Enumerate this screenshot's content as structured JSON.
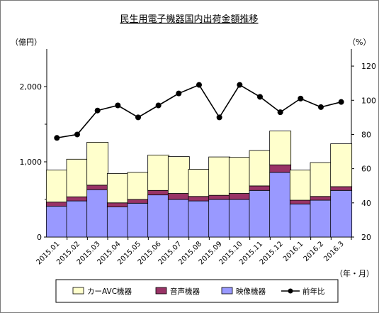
{
  "chart_data": {
    "type": "bar",
    "title": "民生用電子機器国内出荷金額推移",
    "y_left_unit": "（億円）",
    "y_right_unit": "（%）",
    "x_unit": "（年・月）",
    "y_left_range": [
      0,
      2500
    ],
    "y_left_ticks": [
      "0",
      "1,000",
      "2,000"
    ],
    "y_right_range": [
      20,
      130
    ],
    "y_right_ticks": [
      "20",
      "40",
      "60",
      "80",
      "100",
      "120"
    ],
    "grid": false,
    "legend_position": "bottom",
    "categories": [
      "2015.01",
      "2015.02",
      "2015.03",
      "2015.04",
      "2015.05",
      "2015.06",
      "2015.07",
      "2015.08",
      "2015.09",
      "2015.10",
      "2015.11",
      "2015.12",
      "2016.1",
      "2016.2",
      "2016.3"
    ],
    "series": [
      {
        "name": "映像機器",
        "kind": "stacked-bar",
        "color": "#9999ff",
        "values": [
          410,
          480,
          630,
          400,
          450,
          560,
          500,
          480,
          500,
          500,
          620,
          860,
          440,
          490,
          620
        ]
      },
      {
        "name": "音声機器",
        "kind": "stacked-bar",
        "color": "#993366",
        "values": [
          55,
          55,
          60,
          55,
          50,
          60,
          80,
          60,
          55,
          80,
          60,
          100,
          50,
          50,
          50
        ]
      },
      {
        "name": "カーAVC機器",
        "kind": "stacked-bar",
        "color": "#ffffcc",
        "values": [
          425,
          500,
          570,
          390,
          360,
          470,
          490,
          360,
          510,
          480,
          470,
          450,
          400,
          450,
          570
        ]
      },
      {
        "name": "前年比",
        "kind": "line",
        "axis": "right",
        "color": "#000000",
        "values": [
          78,
          80,
          94,
          97,
          90,
          97,
          104,
          109,
          90,
          109,
          102,
          93,
          101,
          96,
          99
        ]
      }
    ],
    "legend_order": [
      "カーAVC機器",
      "音声機器",
      "映像機器",
      "前年比"
    ]
  }
}
